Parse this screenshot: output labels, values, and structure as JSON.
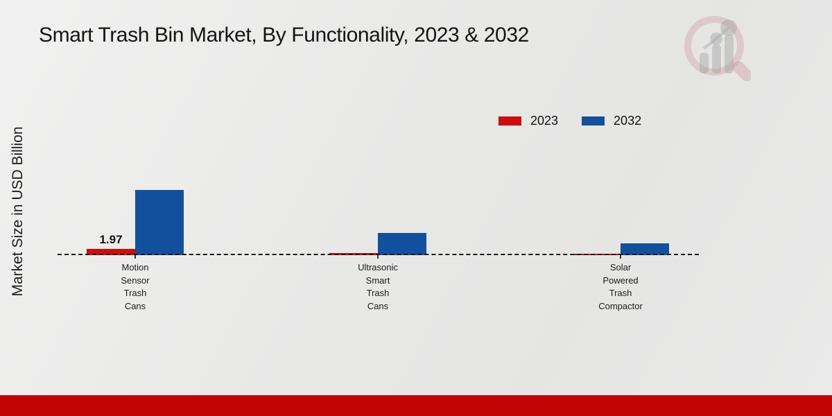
{
  "page": {
    "title": "Smart Trash Bin Market, By Functionality, 2023 & 2032"
  },
  "colors": {
    "series_2023_red": "#ce0c0c",
    "series_2032_blue": "#124f9c",
    "footer_band_red": "#c00404",
    "background_gray": "#e9e9e8",
    "text_dark": "#141414"
  },
  "icons": {
    "logo": "magnifying-glass-bar-chart-watermark"
  },
  "chart_data": {
    "type": "bar",
    "title": "Smart Trash Bin Market, By Functionality, 2023 & 2032",
    "xlabel": "",
    "ylabel": "Market Size in USD Billion",
    "categories": [
      "Motion Sensor Trash Cans",
      "Ultrasonic Smart Trash Cans",
      "Solar Powered Trash Compactor"
    ],
    "series": [
      {
        "name": "2023",
        "color": "#ce0c0c",
        "values": [
          1.97,
          0.65,
          0.42
        ]
      },
      {
        "name": "2032",
        "color": "#124f9c",
        "values": [
          20.4,
          6.9,
          3.7
        ]
      }
    ],
    "data_labels": [
      {
        "series_index": 0,
        "category_index": 0,
        "text": "1.97"
      }
    ],
    "legend_position": "top-right",
    "grid": false,
    "baseline_style": "dashed",
    "ylim": [
      0,
      22
    ],
    "units": "USD Billion"
  }
}
